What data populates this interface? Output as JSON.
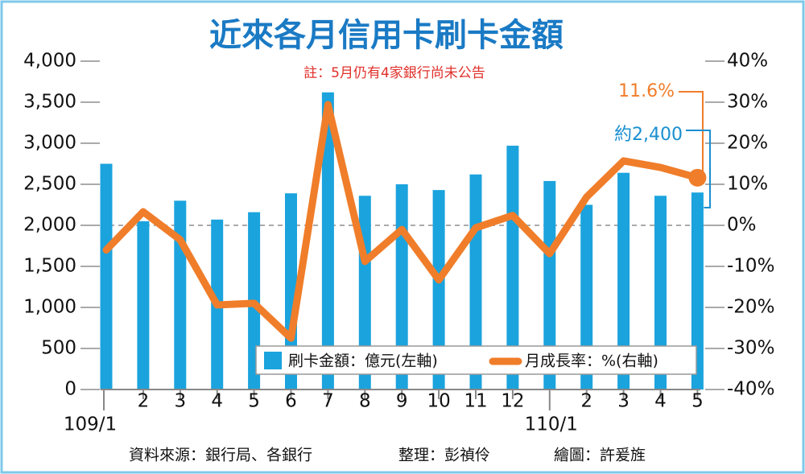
{
  "chart_data": {
    "type": "bar_line",
    "title": "近來各月信用卡刷卡金額",
    "subtitle": "註：5月仍有4家銀行尚未公告",
    "categories": [
      "109/1",
      "2",
      "3",
      "4",
      "5",
      "6",
      "7",
      "8",
      "9",
      "10",
      "11",
      "12",
      "110/1",
      "2",
      "3",
      "4",
      "5"
    ],
    "series": [
      {
        "name": "刷卡金額：億元(左軸)",
        "color": "#1ba3dd",
        "type": "bar",
        "values": [
          2750,
          2050,
          2300,
          2070,
          2160,
          2390,
          3620,
          2360,
          2500,
          2430,
          2620,
          2970,
          2540,
          2250,
          2640,
          2360,
          2400
        ]
      },
      {
        "name": "月成長率：%(右軸)",
        "color": "#f07d2a",
        "type": "line",
        "axis": "y2",
        "values": [
          -6,
          3.3,
          -3.5,
          -19.4,
          -19,
          -27.5,
          29.4,
          -8.8,
          -1,
          -13.3,
          -0.6,
          2.4,
          -6.9,
          6.9,
          15.7,
          14.1,
          11.6
        ]
      }
    ],
    "ylim": [
      0,
      4000
    ],
    "yticks": [
      0,
      500,
      {
        "value": 1000,
        "label": "1,000"
      },
      {
        "value": 1500,
        "label": "1,500"
      },
      {
        "value": 2000,
        "label": "2,000"
      },
      {
        "value": 2500,
        "label": "2,500"
      },
      {
        "value": 3000,
        "label": "3,000"
      },
      {
        "value": 3500,
        "label": "3,500"
      },
      {
        "value": 4000,
        "label": "4,000"
      }
    ],
    "y2lim": [
      -40,
      40
    ],
    "y2ticks": [
      {
        "value": -40,
        "label": "-40%"
      },
      {
        "value": -30,
        "label": "-30%"
      },
      {
        "value": -20,
        "label": "-20%"
      },
      {
        "value": -10,
        "label": "-10%"
      },
      {
        "value": 0,
        "label": "0%"
      },
      {
        "value": 10,
        "label": "10%"
      },
      {
        "value": 20,
        "label": "20%"
      },
      {
        "value": 30,
        "label": "30%"
      },
      {
        "value": 40,
        "label": "40%"
      }
    ],
    "zero_line": true,
    "annotations": [
      {
        "text": "11.6%",
        "color": "#f07d2a"
      },
      {
        "text": "約2,400",
        "color": "#1a8fd0"
      }
    ],
    "source": [
      "資料來源：銀行局、各銀行",
      "整理：彭禎伶",
      "繪圖：許爰旌"
    ]
  }
}
